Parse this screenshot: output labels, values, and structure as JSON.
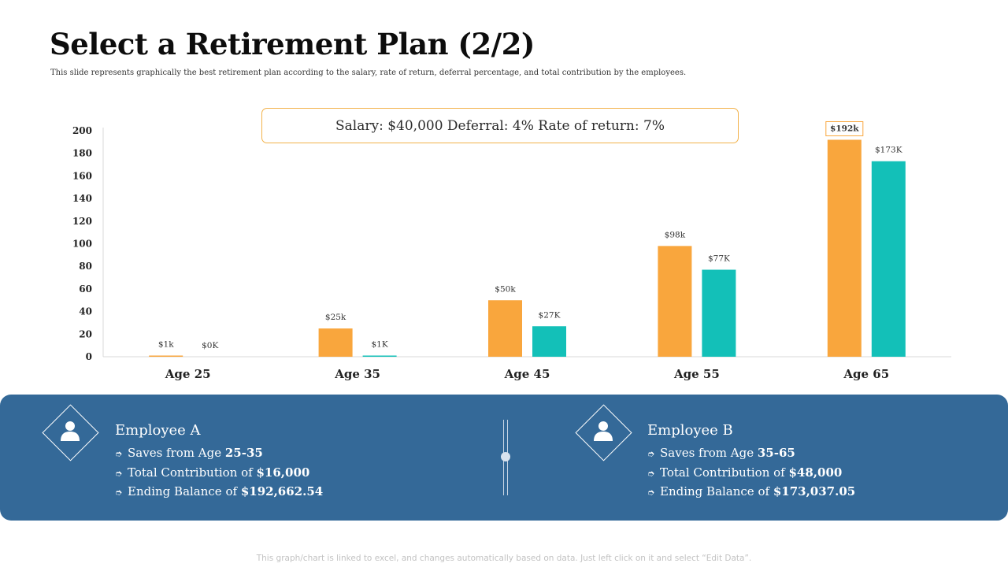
{
  "title": "Select a Retirement Plan (2/2)",
  "subtitle": "This slide represents graphically the best retirement plan according to the salary, rate of return, deferral percentage, and total contribution by the employees.",
  "info_box": "Salary: $40,000 Deferral: 4% Rate of return: 7%",
  "colors": {
    "employee_a": "#f9a63d",
    "employee_b": "#13c0b8",
    "panel": "#346998"
  },
  "chart_data": {
    "type": "bar",
    "categories": [
      "Age 25",
      "Age 35",
      "Age 45",
      "Age 55",
      "Age 65"
    ],
    "series": [
      {
        "values": [
          1,
          25,
          50,
          98,
          192
        ],
        "labels": [
          "$1k",
          "$25k",
          "$50k",
          "$98k",
          "$192k"
        ]
      },
      {
        "values": [
          0,
          1,
          27,
          77,
          173
        ],
        "labels": [
          "$0K",
          "$1K",
          "$27K",
          "$77K",
          "$173K"
        ]
      }
    ],
    "yticks": [
      "0",
      "20",
      "40",
      "60",
      "80",
      "100",
      "120",
      "140",
      "160",
      "180",
      "200"
    ],
    "ylim": [
      0,
      200
    ],
    "grid": false
  },
  "employees": [
    {
      "name": "Employee A",
      "icon": "user-icon",
      "items": [
        {
          "label": "Saves from Age",
          "value": "25-35"
        },
        {
          "label": "Total Contribution of",
          "value": "$16,000"
        },
        {
          "label": "Ending Balance of",
          "value": "$192,662.54"
        }
      ]
    },
    {
      "name": "Employee B",
      "icon": "user-icon",
      "items": [
        {
          "label": "Saves from Age",
          "value": "35-65"
        },
        {
          "label": "Total Contribution of",
          "value": "$48,000"
        },
        {
          "label": "Ending Balance of",
          "value": "$173,037.05"
        }
      ]
    }
  ],
  "footnote": "This graph/chart is linked to excel, and changes automatically based on data. Just left click on it and select “Edit Data”."
}
